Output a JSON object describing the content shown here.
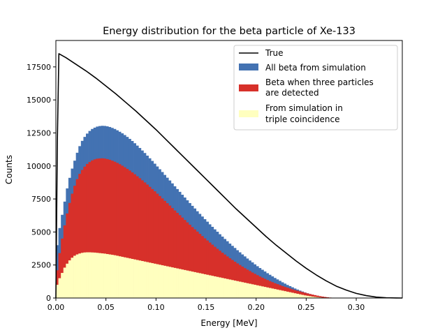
{
  "chart_data": {
    "type": "histogram",
    "title": "Energy distribution for the beta particle of Xe-133",
    "xlabel": "Energy [MeV]",
    "ylabel": "Counts",
    "xlim": [
      0,
      0.346
    ],
    "ylim": [
      0,
      19500
    ],
    "xticks": [
      0,
      0.05,
      0.1,
      0.15,
      0.2,
      0.25,
      0.3
    ],
    "xtick_labels": [
      "0.00",
      "0.05",
      "0.10",
      "0.15",
      "0.20",
      "0.25",
      "0.30"
    ],
    "yticks": [
      0,
      2500,
      5000,
      7500,
      10000,
      12500,
      15000,
      17500
    ],
    "ytick_labels": [
      "0",
      "2500",
      "5000",
      "7500",
      "10000",
      "12500",
      "15000",
      "17500"
    ],
    "grid": false,
    "legend_position": "top-right",
    "bin_width": 0.0025,
    "bin_start": 0.0,
    "series": [
      {
        "name": "All beta from simulation",
        "kind": "histogram",
        "color": "#4372b2",
        "values": [
          4000,
          5300,
          6300,
          7300,
          8300,
          9100,
          9800,
          10400,
          11000,
          11500,
          11900,
          12200,
          12450,
          12650,
          12800,
          12900,
          12980,
          13020,
          13040,
          13030,
          13000,
          12950,
          12880,
          12800,
          12700,
          12590,
          12470,
          12340,
          12200,
          12050,
          11890,
          11720,
          11540,
          11360,
          11170,
          10980,
          10780,
          10580,
          10380,
          10170,
          9960,
          9750,
          9540,
          9320,
          9110,
          8900,
          8680,
          8460,
          8250,
          8040,
          7820,
          7610,
          7400,
          7190,
          6980,
          6780,
          6570,
          6370,
          6170,
          5970,
          5780,
          5580,
          5390,
          5200,
          5020,
          4830,
          4650,
          4470,
          4300,
          4120,
          3950,
          3790,
          3620,
          3460,
          3300,
          3150,
          2990,
          2840,
          2700,
          2550,
          2410,
          2270,
          2140,
          2010,
          1880,
          1760,
          1640,
          1520,
          1410,
          1300,
          1190,
          1090,
          990,
          900,
          810,
          720,
          640,
          560,
          490,
          420,
          360,
          300,
          250,
          200,
          160,
          120,
          90,
          60,
          40,
          25,
          15,
          8,
          4,
          2,
          1,
          0,
          0,
          0,
          0,
          0,
          0,
          0,
          0,
          0,
          0,
          0,
          0,
          0,
          0,
          0,
          0,
          0,
          0,
          0,
          0,
          0,
          0,
          0
        ]
      },
      {
        "name": "Beta when three particles are detected",
        "kind": "histogram",
        "color": "#d7302a",
        "values": [
          2100,
          3400,
          4500,
          5500,
          6400,
          7200,
          7900,
          8500,
          9000,
          9400,
          9700,
          9950,
          10150,
          10300,
          10420,
          10500,
          10550,
          10570,
          10580,
          10560,
          10520,
          10470,
          10400,
          10320,
          10230,
          10130,
          10020,
          9900,
          9780,
          9650,
          9510,
          9370,
          9220,
          9070,
          8910,
          8750,
          8590,
          8420,
          8250,
          8080,
          7900,
          7720,
          7540,
          7360,
          7180,
          7000,
          6810,
          6630,
          6450,
          6270,
          6090,
          5910,
          5730,
          5550,
          5370,
          5200,
          5030,
          4860,
          4690,
          4520,
          4360,
          4200,
          4040,
          3880,
          3730,
          3580,
          3430,
          3290,
          3150,
          3010,
          2880,
          2750,
          2620,
          2500,
          2380,
          2260,
          2150,
          2040,
          1930,
          1830,
          1730,
          1630,
          1540,
          1450,
          1360,
          1280,
          1200,
          1120,
          1050,
          980,
          910,
          840,
          780,
          720,
          660,
          600,
          550,
          500,
          450,
          400,
          350,
          300,
          260,
          220,
          180,
          140,
          110,
          80,
          55,
          35,
          20,
          10,
          5,
          2,
          1,
          0,
          0,
          0,
          0,
          0,
          0,
          0,
          0,
          0,
          0,
          0,
          0,
          0,
          0,
          0,
          0,
          0,
          0,
          0,
          0,
          0,
          0,
          0
        ]
      },
      {
        "name": "From simulation in triple coincidence",
        "kind": "histogram",
        "color": "#ffffbf",
        "values": [
          1000,
          1500,
          1900,
          2300,
          2600,
          2850,
          3050,
          3200,
          3300,
          3370,
          3420,
          3450,
          3460,
          3460,
          3450,
          3440,
          3420,
          3400,
          3380,
          3360,
          3330,
          3300,
          3270,
          3240,
          3200,
          3160,
          3120,
          3080,
          3040,
          3000,
          2960,
          2920,
          2880,
          2840,
          2800,
          2760,
          2720,
          2680,
          2640,
          2600,
          2560,
          2520,
          2480,
          2440,
          2400,
          2360,
          2320,
          2280,
          2240,
          2200,
          2160,
          2120,
          2080,
          2040,
          2000,
          1960,
          1920,
          1880,
          1840,
          1800,
          1760,
          1720,
          1680,
          1640,
          1600,
          1560,
          1520,
          1480,
          1440,
          1400,
          1360,
          1320,
          1280,
          1240,
          1200,
          1160,
          1120,
          1080,
          1040,
          1000,
          960,
          920,
          880,
          840,
          800,
          760,
          720,
          680,
          640,
          600,
          560,
          520,
          480,
          440,
          400,
          360,
          320,
          280,
          240,
          200,
          170,
          140,
          110,
          85,
          65,
          45,
          30,
          20,
          12,
          6,
          3,
          1,
          0,
          0,
          0,
          0,
          0,
          0,
          0,
          0,
          0,
          0,
          0,
          0,
          0,
          0,
          0,
          0,
          0,
          0,
          0,
          0,
          0,
          0,
          0,
          0,
          0,
          0,
          0
        ]
      },
      {
        "name": "True",
        "kind": "line",
        "color": "#000000",
        "x": [
          0.0,
          0.0015,
          0.003,
          0.01,
          0.02,
          0.03,
          0.04,
          0.05,
          0.06,
          0.07,
          0.08,
          0.09,
          0.1,
          0.11,
          0.12,
          0.13,
          0.14,
          0.15,
          0.16,
          0.17,
          0.18,
          0.19,
          0.2,
          0.21,
          0.22,
          0.23,
          0.24,
          0.25,
          0.26,
          0.27,
          0.28,
          0.29,
          0.3,
          0.31,
          0.32,
          0.33,
          0.34,
          0.346
        ],
        "y": [
          0,
          12000,
          18500,
          18200,
          17700,
          17200,
          16650,
          16050,
          15450,
          14800,
          14150,
          13450,
          12750,
          12000,
          11250,
          10500,
          9750,
          9000,
          8250,
          7500,
          6750,
          6050,
          5350,
          4650,
          4000,
          3400,
          2800,
          2250,
          1750,
          1300,
          900,
          600,
          350,
          180,
          70,
          20,
          3,
          0
        ]
      }
    ]
  }
}
